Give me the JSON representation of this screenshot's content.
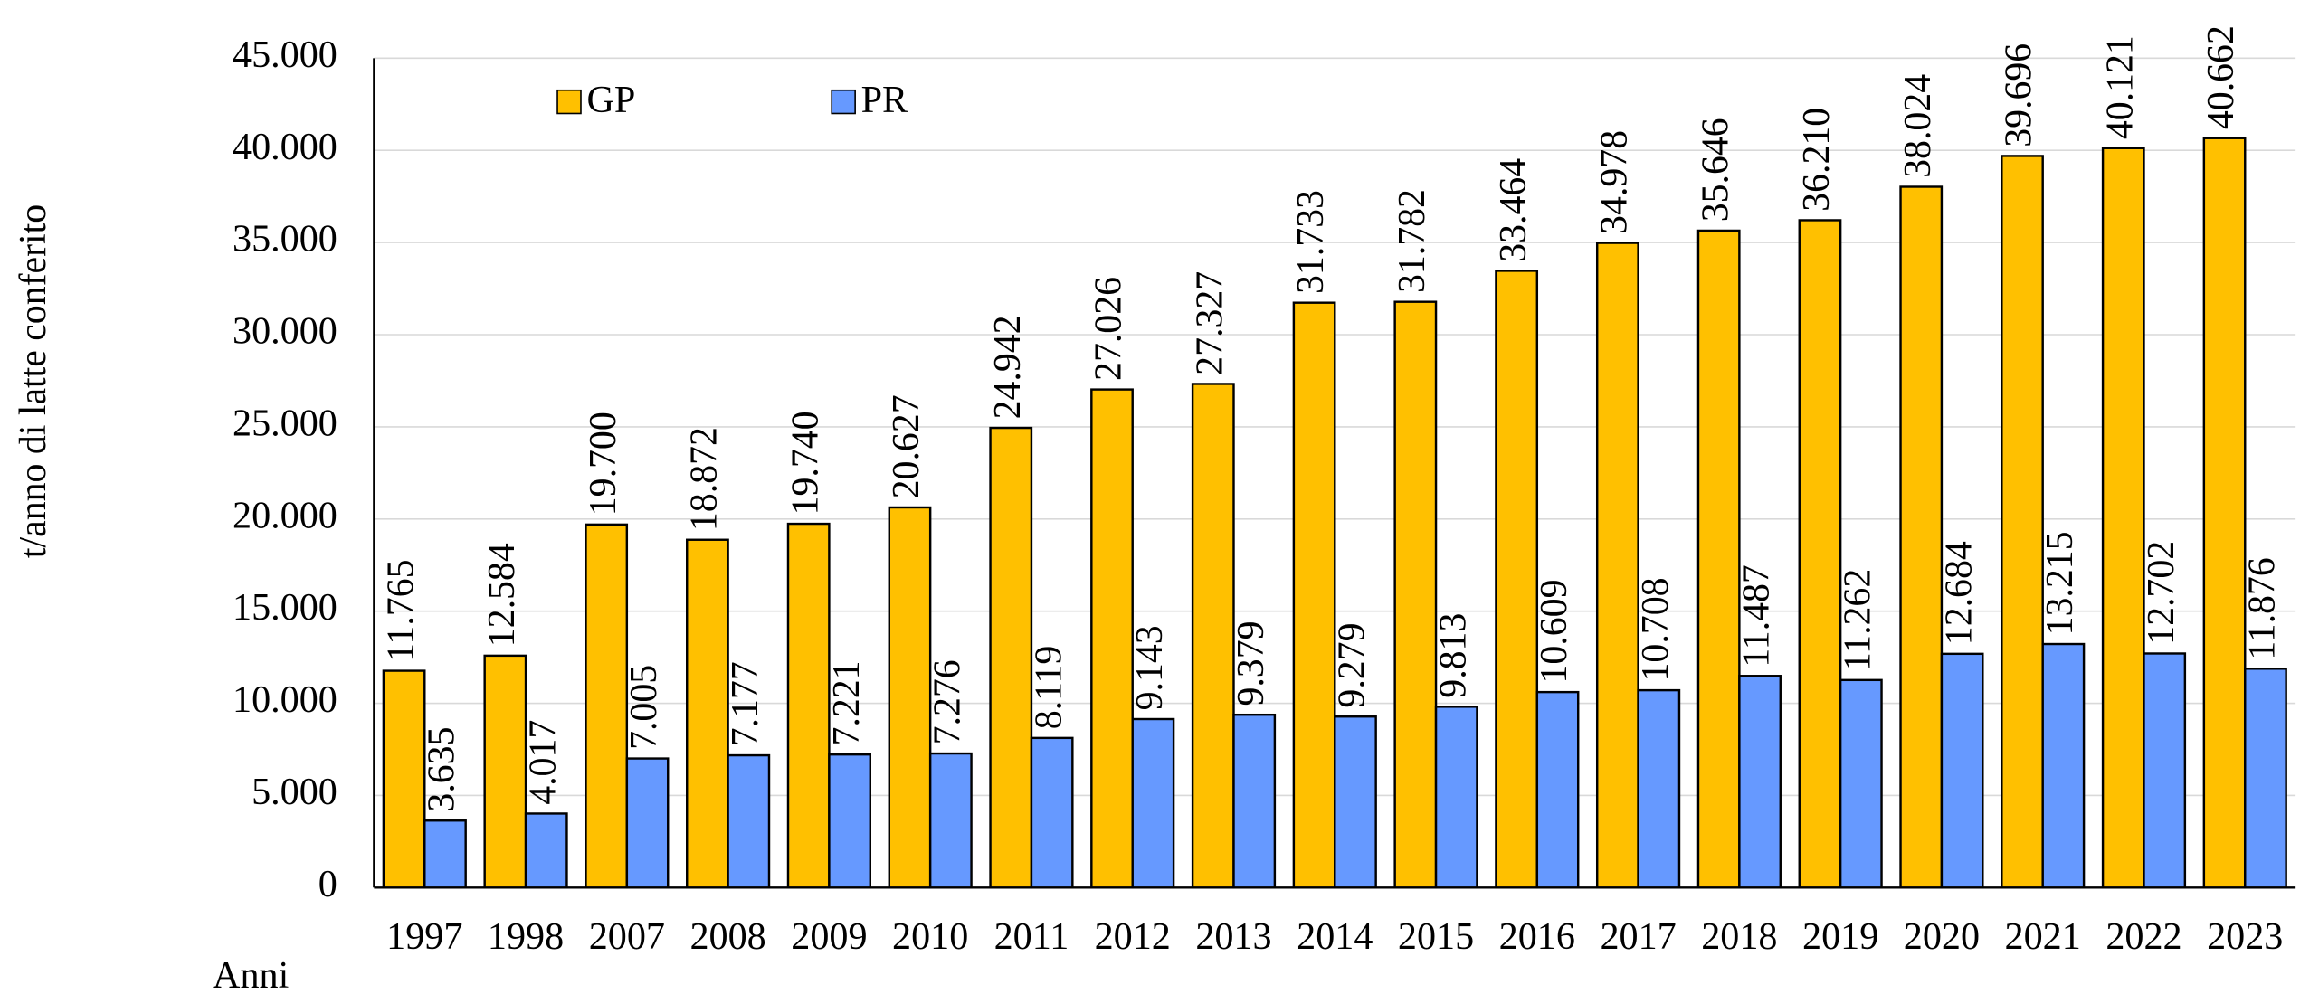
{
  "chart_data": {
    "type": "bar",
    "y_label": "t/anno  di latte conferito",
    "x_label": "Anni",
    "categories": [
      "1997",
      "1998",
      "2007",
      "2008",
      "2009",
      "2010",
      "2011",
      "2012",
      "2013",
      "2014",
      "2015",
      "2016",
      "2017",
      "2018",
      "2019",
      "2020",
      "2021",
      "2022",
      "2023"
    ],
    "series": [
      {
        "name": "GP",
        "color": "#ffc000",
        "values": [
          11765,
          12584,
          19700,
          18872,
          19740,
          20627,
          24942,
          27026,
          27327,
          31733,
          31782,
          33464,
          34978,
          35646,
          36210,
          38024,
          39696,
          40121,
          40662
        ],
        "value_labels": [
          "11.765",
          "12.584",
          "19.700",
          "18.872",
          "19.740",
          "20.627",
          "24.942",
          "27.026",
          "27.327",
          "31.733",
          "31.782",
          "33.464",
          "34.978",
          "35.646",
          "36.210",
          "38.024",
          "39.696",
          "40.121",
          "40.662"
        ]
      },
      {
        "name": "PR",
        "color": "#6699ff",
        "values": [
          3635,
          4017,
          7005,
          7177,
          7221,
          7276,
          8119,
          9143,
          9379,
          9279,
          9813,
          10609,
          10708,
          11487,
          11262,
          12684,
          13215,
          12702,
          11876
        ],
        "value_labels": [
          "3.635",
          "4.017",
          "7.005",
          "7.177",
          "7.221",
          "7.276",
          "8.119",
          "9.143",
          "9.379",
          "9.279",
          "9.813",
          "10.609",
          "10.708",
          "11.487",
          "11.262",
          "12.684",
          "13.215",
          "12.702",
          "11.876"
        ]
      }
    ],
    "ylim": [
      0,
      45000
    ],
    "yticks": [
      0,
      {
        "value": 5000,
        "label": "5.000"
      },
      {
        "value": 10000,
        "label": "10.000"
      },
      {
        "value": 15000,
        "label": "15.000"
      },
      {
        "value": 20000,
        "label": "20.000"
      },
      {
        "value": 25000,
        "label": "25.000"
      },
      {
        "value": 30000,
        "label": "30.000"
      },
      {
        "value": 35000,
        "label": "35.000"
      },
      {
        "value": 40000,
        "label": "40.000"
      },
      {
        "value": 45000,
        "label": "45.000"
      }
    ],
    "grid": true
  }
}
